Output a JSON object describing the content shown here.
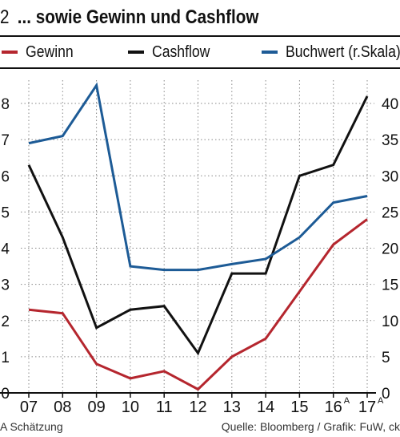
{
  "header": {
    "number": "2",
    "title": "... sowie Gewinn und Cashflow"
  },
  "legend": [
    {
      "label": "Gewinn",
      "color": "#b5262e"
    },
    {
      "label": "Cashflow",
      "color": "#111111"
    },
    {
      "label": "Buchwert (r.Skala)",
      "color": "#1d5b96"
    }
  ],
  "footer": {
    "note": "A Schätzung",
    "source": "Quelle: Bloomberg / Grafik: FuW, ck"
  },
  "chart_data": {
    "type": "line",
    "categories": [
      "07",
      "08",
      "09",
      "10",
      "11",
      "12",
      "13",
      "14",
      "15",
      "16",
      "17"
    ],
    "category_superscripts": [
      "",
      "",
      "",
      "",
      "",
      "",
      "",
      "",
      "",
      "A",
      "A"
    ],
    "left_axis": {
      "min": 0,
      "max": 8,
      "ticks": [
        "0",
        "1",
        "2",
        "3",
        "4",
        "5",
        "6",
        "7",
        "8"
      ]
    },
    "right_axis": {
      "min": 0,
      "max": 40,
      "ticks": [
        "0",
        "5",
        "10",
        "15",
        "20",
        "25",
        "30",
        "35",
        "40"
      ]
    },
    "series": [
      {
        "name": "Gewinn",
        "axis": "left",
        "color": "#b5262e",
        "values": [
          2.3,
          2.2,
          0.8,
          0.4,
          0.6,
          0.1,
          1.0,
          1.5,
          2.8,
          4.1,
          4.8
        ]
      },
      {
        "name": "Cashflow",
        "axis": "left",
        "color": "#111111",
        "values": [
          6.3,
          4.3,
          1.8,
          2.3,
          2.4,
          1.1,
          3.3,
          3.3,
          6.0,
          6.3,
          8.2
        ]
      },
      {
        "name": "Buchwert (r.Skala)",
        "axis": "right",
        "color": "#1d5b96",
        "values": [
          34.5,
          35.5,
          42.5,
          17.5,
          17.0,
          17.0,
          17.8,
          18.5,
          21.5,
          26.3,
          27.2
        ]
      }
    ],
    "grid": "dotted"
  }
}
